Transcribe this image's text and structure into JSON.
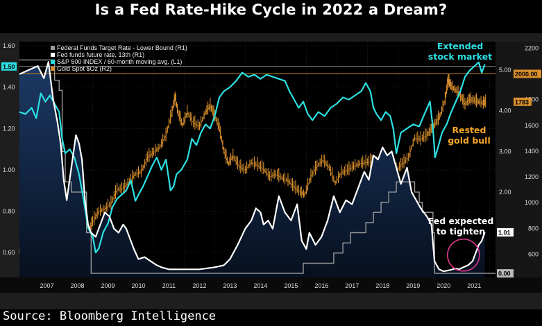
{
  "title": "Is a Fed Rate-Hike Cycle in 2022 a Dream?",
  "source": "Source: Bloomberg Intelligence",
  "colors": {
    "sp500": "#2ce0e3",
    "gold": "#d98f2c",
    "fed_target": "#9a9a9a",
    "fed_future": "#ffffff",
    "highlight": "#e2388f",
    "fill_top": "#1c3a66"
  },
  "chart_data": {
    "type": "line",
    "x_tick_labels": [
      "2007",
      "2008",
      "2009",
      "2010",
      "2011",
      "2012",
      "2013",
      "2014",
      "2015",
      "2016",
      "2017",
      "2018",
      "2019",
      "2020",
      "2021"
    ],
    "x_range": [
      2006.6,
      2022.2
    ],
    "left_axis": {
      "label": "L1",
      "range": [
        0.48,
        1.62
      ],
      "ticks": [
        0.6,
        0.8,
        1.0,
        1.2,
        1.4,
        1.6
      ],
      "tick_labels": [
        "0.60",
        "0.80",
        "1.00",
        "1.20",
        "1.40",
        "1.60"
      ]
    },
    "r1_axis": {
      "label": "R1",
      "range": [
        -0.1,
        5.7
      ],
      "ticks": [
        1.0,
        2.0,
        3.0,
        4.0,
        5.0
      ],
      "tick_labels": [
        "1.00",
        "2.00",
        "3.00",
        "4.00",
        "5.00"
      ]
    },
    "r2_axis": {
      "label": "R2",
      "range": [
        420,
        2250
      ],
      "ticks": [
        600,
        800,
        1000,
        1200,
        1400,
        1600,
        1800,
        2000,
        2200
      ],
      "tick_labels": [
        "600",
        "800",
        "1000",
        "1200",
        "1400",
        "1600",
        "1800",
        "2000",
        "2200"
      ]
    },
    "legend": [
      {
        "name": "Federal Funds Target Rate - Lower Bound (R1)",
        "color": "#9a9a9a"
      },
      {
        "name": "Fed funds future rate, 13th (R1)",
        "color": "#ffffff"
      },
      {
        "name": "S&P 500 INDEX / 60-month moving avg.  (L1)",
        "color": "#2ce0e3"
      },
      {
        "name": "Gold Spot $Oz (R2)",
        "color": "#d98f2c"
      }
    ],
    "series": [
      {
        "name": "Federal Funds Target Rate - Lower Bound",
        "axis": "R1",
        "x": [
          2006.6,
          2007.6,
          2007.75,
          2007.9,
          2008.0,
          2008.1,
          2008.3,
          2008.8,
          2008.95,
          2015.9,
          2016.9,
          2017.2,
          2017.45,
          2017.95,
          2018.2,
          2018.45,
          2018.7,
          2018.95,
          2019.55,
          2019.7,
          2019.8,
          2020.15,
          2020.2,
          2022.2
        ],
        "values": [
          5.25,
          5.25,
          4.75,
          4.5,
          3.0,
          2.25,
          2.0,
          1.0,
          0.0,
          0.25,
          0.5,
          0.75,
          1.0,
          1.25,
          1.5,
          1.75,
          2.0,
          2.25,
          2.0,
          1.75,
          1.5,
          1.0,
          0.0,
          0.0
        ]
      },
      {
        "name": "Fed funds future rate, 13th",
        "axis": "R1",
        "x": [
          2006.6,
          2006.9,
          2007.2,
          2007.4,
          2007.55,
          2007.7,
          2007.85,
          2007.95,
          2008.05,
          2008.15,
          2008.3,
          2008.45,
          2008.55,
          2008.65,
          2008.75,
          2008.85,
          2008.95,
          2009.1,
          2009.25,
          2009.4,
          2009.55,
          2009.7,
          2009.85,
          2010.0,
          2010.1,
          2010.2,
          2010.35,
          2010.5,
          2010.7,
          2010.9,
          2011.1,
          2011.25,
          2011.5,
          2012.0,
          2012.5,
          2013.0,
          2013.3,
          2013.5,
          2013.75,
          2014.0,
          2014.2,
          2014.35,
          2014.5,
          2014.6,
          2014.75,
          2014.9,
          2015.1,
          2015.3,
          2015.5,
          2015.7,
          2015.85,
          2016.0,
          2016.1,
          2016.3,
          2016.5,
          2016.7,
          2016.9,
          2017.1,
          2017.3,
          2017.5,
          2017.7,
          2017.9,
          2018.05,
          2018.2,
          2018.35,
          2018.5,
          2018.65,
          2018.8,
          2018.95,
          2019.1,
          2019.3,
          2019.45,
          2019.6,
          2019.75,
          2019.95,
          2020.1,
          2020.2,
          2020.35,
          2020.5,
          2020.7,
          2020.9,
          2021.0,
          2021.15,
          2021.3,
          2021.45,
          2021.55,
          2021.65,
          2021.75,
          2021.85
        ],
        "values": [
          4.9,
          5.0,
          5.1,
          4.8,
          5.2,
          4.3,
          3.7,
          3.2,
          2.3,
          1.8,
          2.6,
          3.4,
          3.2,
          2.8,
          1.8,
          1.2,
          1.0,
          0.9,
          1.2,
          1.5,
          1.4,
          1.1,
          1.0,
          1.2,
          1.1,
          0.9,
          0.6,
          0.35,
          0.4,
          0.3,
          0.2,
          0.15,
          0.1,
          0.1,
          0.1,
          0.15,
          0.2,
          0.35,
          0.7,
          1.1,
          1.3,
          1.6,
          1.5,
          1.2,
          1.3,
          1.1,
          1.9,
          1.5,
          1.3,
          1.7,
          0.8,
          0.6,
          1.0,
          0.7,
          0.9,
          1.3,
          1.9,
          1.5,
          1.8,
          1.7,
          2.1,
          2.5,
          2.3,
          2.9,
          2.8,
          3.1,
          2.9,
          3.0,
          2.6,
          2.2,
          2.6,
          2.0,
          1.8,
          1.6,
          1.4,
          1.2,
          0.3,
          0.1,
          0.05,
          0.08,
          0.12,
          0.1,
          0.15,
          0.2,
          0.3,
          0.5,
          0.7,
          0.8,
          1.01
        ]
      },
      {
        "name": "S&P 500 INDEX / 60-month moving avg.",
        "axis": "L1",
        "x": [
          2006.6,
          2006.8,
          2007.0,
          2007.15,
          2007.3,
          2007.45,
          2007.6,
          2007.75,
          2007.9,
          2008.0,
          2008.1,
          2008.25,
          2008.4,
          2008.55,
          2008.7,
          2008.85,
          2009.0,
          2009.1,
          2009.2,
          2009.35,
          2009.5,
          2009.65,
          2009.8,
          2009.95,
          2010.1,
          2010.25,
          2010.4,
          2010.5,
          2010.65,
          2010.8,
          2010.95,
          2011.1,
          2011.25,
          2011.4,
          2011.55,
          2011.65,
          2011.75,
          2011.9,
          2012.1,
          2012.25,
          2012.4,
          2012.55,
          2012.7,
          2012.85,
          2013.0,
          2013.15,
          2013.3,
          2013.5,
          2013.7,
          2013.9,
          2014.1,
          2014.3,
          2014.5,
          2014.7,
          2014.9,
          2015.1,
          2015.3,
          2015.45,
          2015.6,
          2015.75,
          2015.9,
          2016.05,
          2016.2,
          2016.4,
          2016.6,
          2016.8,
          2017.0,
          2017.2,
          2017.4,
          2017.6,
          2017.8,
          2017.95,
          2018.1,
          2018.2,
          2018.3,
          2018.45,
          2018.6,
          2018.75,
          2018.85,
          2018.95,
          2019.1,
          2019.3,
          2019.5,
          2019.7,
          2019.9,
          2020.05,
          2020.15,
          2020.22,
          2020.3,
          2020.45,
          2020.6,
          2020.75,
          2020.9,
          2021.05,
          2021.2,
          2021.35,
          2021.5,
          2021.65,
          2021.75,
          2021.85
        ],
        "values": [
          1.28,
          1.27,
          1.3,
          1.25,
          1.37,
          1.33,
          1.36,
          1.32,
          1.28,
          1.15,
          1.08,
          1.1,
          1.06,
          0.98,
          0.86,
          0.72,
          0.68,
          0.6,
          0.62,
          0.7,
          0.74,
          0.82,
          0.86,
          0.88,
          0.9,
          0.95,
          0.85,
          0.88,
          0.92,
          0.97,
          1.02,
          1.06,
          1.0,
          1.05,
          0.9,
          0.92,
          0.98,
          1.0,
          1.05,
          1.15,
          1.12,
          1.18,
          1.22,
          1.2,
          1.26,
          1.35,
          1.38,
          1.4,
          1.43,
          1.47,
          1.45,
          1.46,
          1.44,
          1.46,
          1.45,
          1.44,
          1.43,
          1.38,
          1.34,
          1.3,
          1.33,
          1.27,
          1.24,
          1.28,
          1.26,
          1.3,
          1.32,
          1.35,
          1.34,
          1.36,
          1.38,
          1.42,
          1.38,
          1.3,
          1.27,
          1.24,
          1.28,
          1.26,
          1.2,
          1.08,
          1.18,
          1.2,
          1.22,
          1.21,
          1.28,
          1.33,
          1.2,
          1.06,
          1.1,
          1.18,
          1.22,
          1.28,
          1.33,
          1.38,
          1.45,
          1.48,
          1.5,
          1.52,
          1.47,
          1.51
        ]
      },
      {
        "name": "Gold Spot $Oz",
        "axis": "R2",
        "x": [
          2006.6,
          2006.9,
          2007.2,
          2007.5,
          2007.8,
          2008.0,
          2008.15,
          2008.3,
          2008.5,
          2008.7,
          2008.85,
          2009.0,
          2009.2,
          2009.4,
          2009.6,
          2009.8,
          2010.0,
          2010.2,
          2010.4,
          2010.6,
          2010.8,
          2011.0,
          2011.2,
          2011.4,
          2011.6,
          2011.7,
          2011.8,
          2011.95,
          2012.1,
          2012.3,
          2012.5,
          2012.7,
          2012.85,
          2013.0,
          2013.15,
          2013.3,
          2013.45,
          2013.6,
          2013.8,
          2014.0,
          2014.2,
          2014.4,
          2014.6,
          2014.8,
          2015.0,
          2015.2,
          2015.4,
          2015.6,
          2015.8,
          2015.95,
          2016.15,
          2016.35,
          2016.55,
          2016.75,
          2016.95,
          2017.15,
          2017.35,
          2017.55,
          2017.75,
          2017.95,
          2018.15,
          2018.35,
          2018.55,
          2018.75,
          2018.95,
          2019.15,
          2019.35,
          2019.55,
          2019.75,
          2019.95,
          2020.1,
          2020.25,
          2020.4,
          2020.55,
          2020.65,
          2020.75,
          2020.9,
          2021.05,
          2021.2,
          2021.35,
          2021.5,
          2021.65,
          2021.8,
          2021.9
        ],
        "values": [
          620,
          640,
          660,
          690,
          760,
          890,
          960,
          900,
          860,
          780,
          760,
          850,
          930,
          950,
          990,
          1100,
          1110,
          1160,
          1220,
          1240,
          1350,
          1390,
          1430,
          1520,
          1700,
          1820,
          1690,
          1600,
          1700,
          1620,
          1590,
          1700,
          1750,
          1670,
          1580,
          1400,
          1300,
          1360,
          1280,
          1250,
          1310,
          1290,
          1260,
          1200,
          1220,
          1190,
          1170,
          1120,
          1080,
          1060,
          1200,
          1280,
          1330,
          1270,
          1150,
          1230,
          1250,
          1280,
          1300,
          1310,
          1320,
          1300,
          1240,
          1200,
          1250,
          1300,
          1350,
          1500,
          1490,
          1520,
          1570,
          1620,
          1680,
          1800,
          1950,
          1900,
          1870,
          1830,
          1760,
          1800,
          1790,
          1780,
          1770,
          1783
        ]
      }
    ],
    "reference_lines": [
      {
        "name": "S&P ratio level",
        "axis": "L1",
        "value": 1.5,
        "label": "1.50"
      },
      {
        "name": "Gold level",
        "axis": "R2",
        "value": 2000,
        "label": "2000.00"
      }
    ],
    "value_labels": {
      "fed_future_last": "1.01",
      "gold_last": "1783",
      "fed_target_last": "0.00"
    },
    "annotations": {
      "extended": [
        "Extended",
        "stock market"
      ],
      "rested": [
        "Rested",
        "gold bull"
      ],
      "fed_expected": [
        "Fed expected",
        "to tighten"
      ]
    }
  }
}
